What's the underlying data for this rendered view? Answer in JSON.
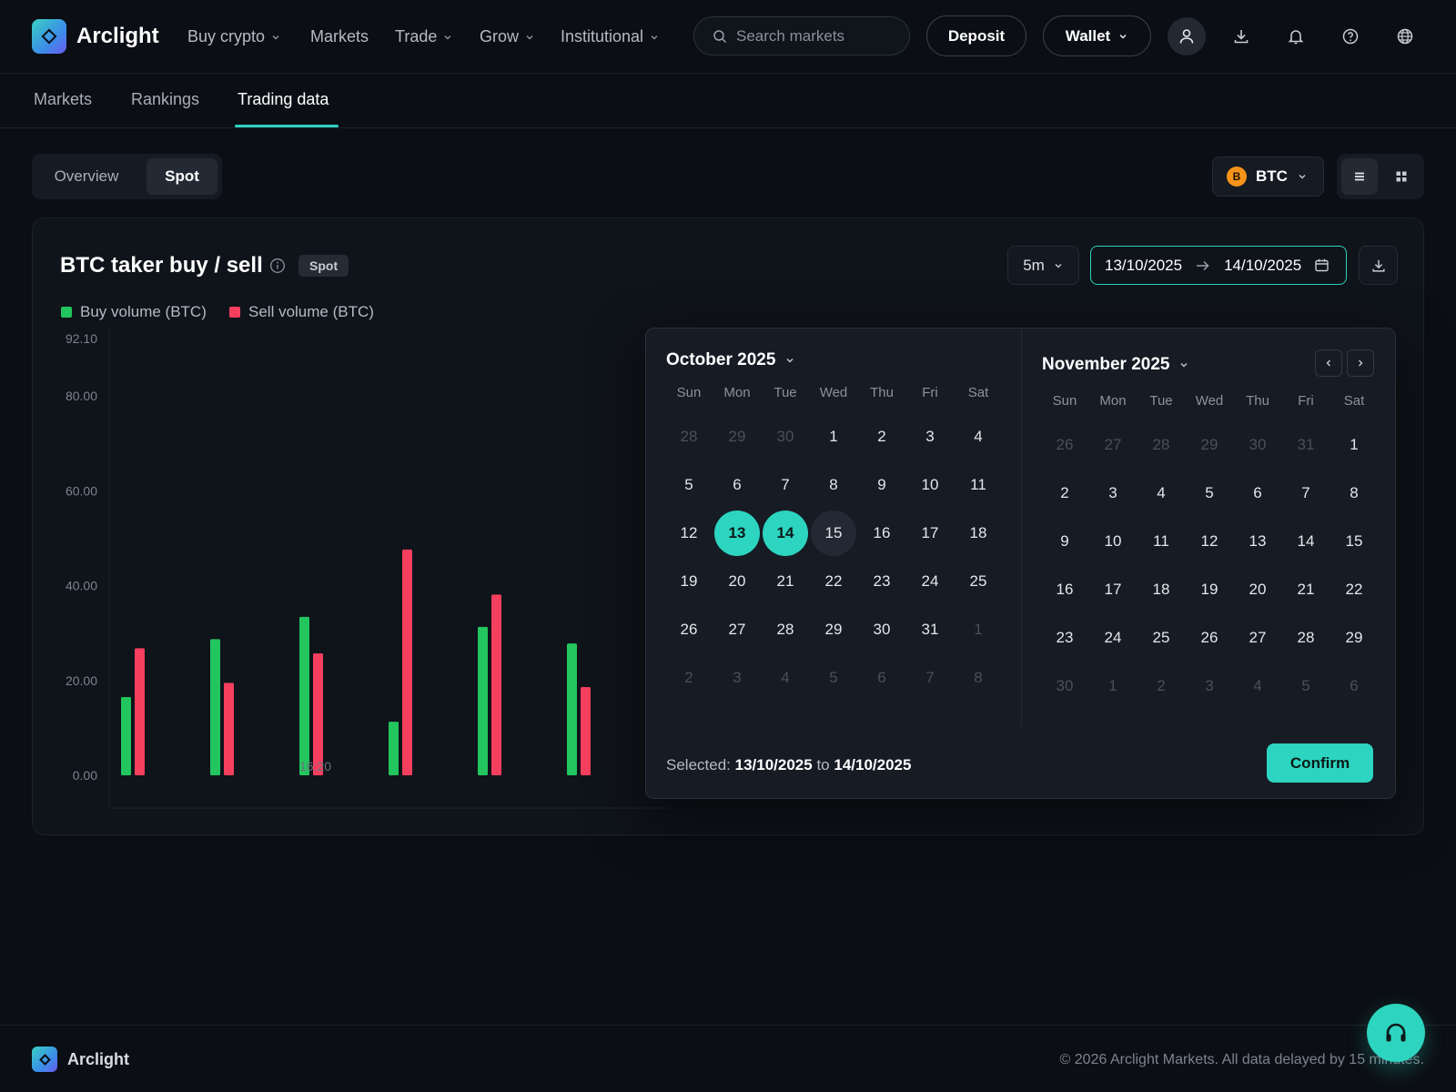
{
  "app": {
    "brand": "Arclight"
  },
  "nav": [
    {
      "label": "Buy crypto",
      "dropdown": true
    },
    {
      "label": "Markets",
      "dropdown": false
    },
    {
      "label": "Trade",
      "dropdown": true
    },
    {
      "label": "Grow",
      "dropdown": true
    },
    {
      "label": "Institutional",
      "dropdown": true
    }
  ],
  "search": {
    "placeholder": "Search markets",
    "value": ""
  },
  "header": {
    "deposit_label": "Deposit",
    "wallet_label": "Wallet",
    "icons": [
      "user-icon",
      "download-icon",
      "bell-icon",
      "help-icon",
      "globe-icon"
    ]
  },
  "tabs": [
    {
      "label": "Markets",
      "active": false
    },
    {
      "label": "Rankings",
      "active": false
    },
    {
      "label": "Trading data",
      "active": true
    }
  ],
  "segment": [
    {
      "label": "Overview",
      "active": false
    },
    {
      "label": "Spot",
      "active": true
    }
  ],
  "coin": {
    "symbol_letter": "B",
    "label": "BTC",
    "color": "#f7931a"
  },
  "card": {
    "title": "BTC taker buy / sell",
    "tag": "Spot",
    "interval": "5m",
    "range_start": "13/10/2025",
    "range_end": "14/10/2025"
  },
  "chart_data": {
    "type": "bar",
    "series": [
      {
        "name": "Buy volume (BTC)",
        "color": "#22c55e",
        "values": [
          16.5,
          28.7,
          33.4,
          11.3,
          31.3,
          27.8
        ]
      },
      {
        "name": "Sell volume (BTC)",
        "color": "#f43f5e",
        "values": [
          26.8,
          19.5,
          25.7,
          47.6,
          38.1,
          18.6
        ]
      }
    ],
    "yticks": [
      "92.10",
      "80.00",
      "60.00",
      "40.00",
      "20.00",
      "0.00"
    ],
    "ylim": [
      0,
      92.1
    ],
    "xlabel_visible": "16:20",
    "grid": false
  },
  "datepicker": {
    "left_month": {
      "title": "October 2025",
      "weekdays": [
        "Sun",
        "Mon",
        "Tue",
        "Wed",
        "Thu",
        "Fri",
        "Sat"
      ],
      "weeks": [
        [
          "28",
          "29",
          "30",
          "1",
          "2",
          "3",
          "4"
        ],
        [
          "5",
          "6",
          "7",
          "8",
          "9",
          "10",
          "11"
        ],
        [
          "12",
          "13",
          "14",
          "15",
          "16",
          "17",
          "18"
        ],
        [
          "19",
          "20",
          "21",
          "22",
          "23",
          "24",
          "25"
        ],
        [
          "26",
          "27",
          "28",
          "29",
          "30",
          "31",
          "1"
        ],
        [
          "2",
          "3",
          "4",
          "5",
          "6",
          "7",
          "8"
        ]
      ],
      "muted": [
        [
          0,
          0
        ],
        [
          0,
          1
        ],
        [
          0,
          2
        ],
        [
          4,
          6
        ],
        [
          5,
          0
        ],
        [
          5,
          1
        ],
        [
          5,
          2
        ],
        [
          5,
          3
        ],
        [
          5,
          4
        ],
        [
          5,
          5
        ],
        [
          5,
          6
        ]
      ],
      "selected": [
        [
          2,
          1
        ],
        [
          2,
          2
        ]
      ],
      "hover": [
        [
          2,
          3
        ]
      ]
    },
    "right_month": {
      "title": "November 2025",
      "weekdays": [
        "Sun",
        "Mon",
        "Tue",
        "Wed",
        "Thu",
        "Fri",
        "Sat"
      ],
      "weeks": [
        [
          "26",
          "27",
          "28",
          "29",
          "30",
          "31",
          "1"
        ],
        [
          "2",
          "3",
          "4",
          "5",
          "6",
          "7",
          "8"
        ],
        [
          "9",
          "10",
          "11",
          "12",
          "13",
          "14",
          "15"
        ],
        [
          "16",
          "17",
          "18",
          "19",
          "20",
          "21",
          "22"
        ],
        [
          "23",
          "24",
          "25",
          "26",
          "27",
          "28",
          "29"
        ],
        [
          "30",
          "1",
          "2",
          "3",
          "4",
          "5",
          "6"
        ]
      ],
      "muted": [
        [
          0,
          0
        ],
        [
          0,
          1
        ],
        [
          0,
          2
        ],
        [
          0,
          3
        ],
        [
          0,
          4
        ],
        [
          0,
          5
        ],
        [
          5,
          0
        ],
        [
          5,
          1
        ],
        [
          5,
          2
        ],
        [
          5,
          3
        ],
        [
          5,
          4
        ],
        [
          5,
          5
        ],
        [
          5,
          6
        ]
      ]
    },
    "footer_prefix": "Selected:",
    "footer_start": "13/10/2025",
    "footer_mid": "to",
    "footer_end": "14/10/2025",
    "confirm_label": "Confirm"
  },
  "footer": {
    "brand": "Arclight",
    "copyright": "© 2026 Arclight Markets. All data delayed by 15 minutes."
  },
  "colors": {
    "accent": "#2dd4bf",
    "buy": "#22c55e",
    "sell": "#f43f5e",
    "bg": "#0b0e14"
  }
}
